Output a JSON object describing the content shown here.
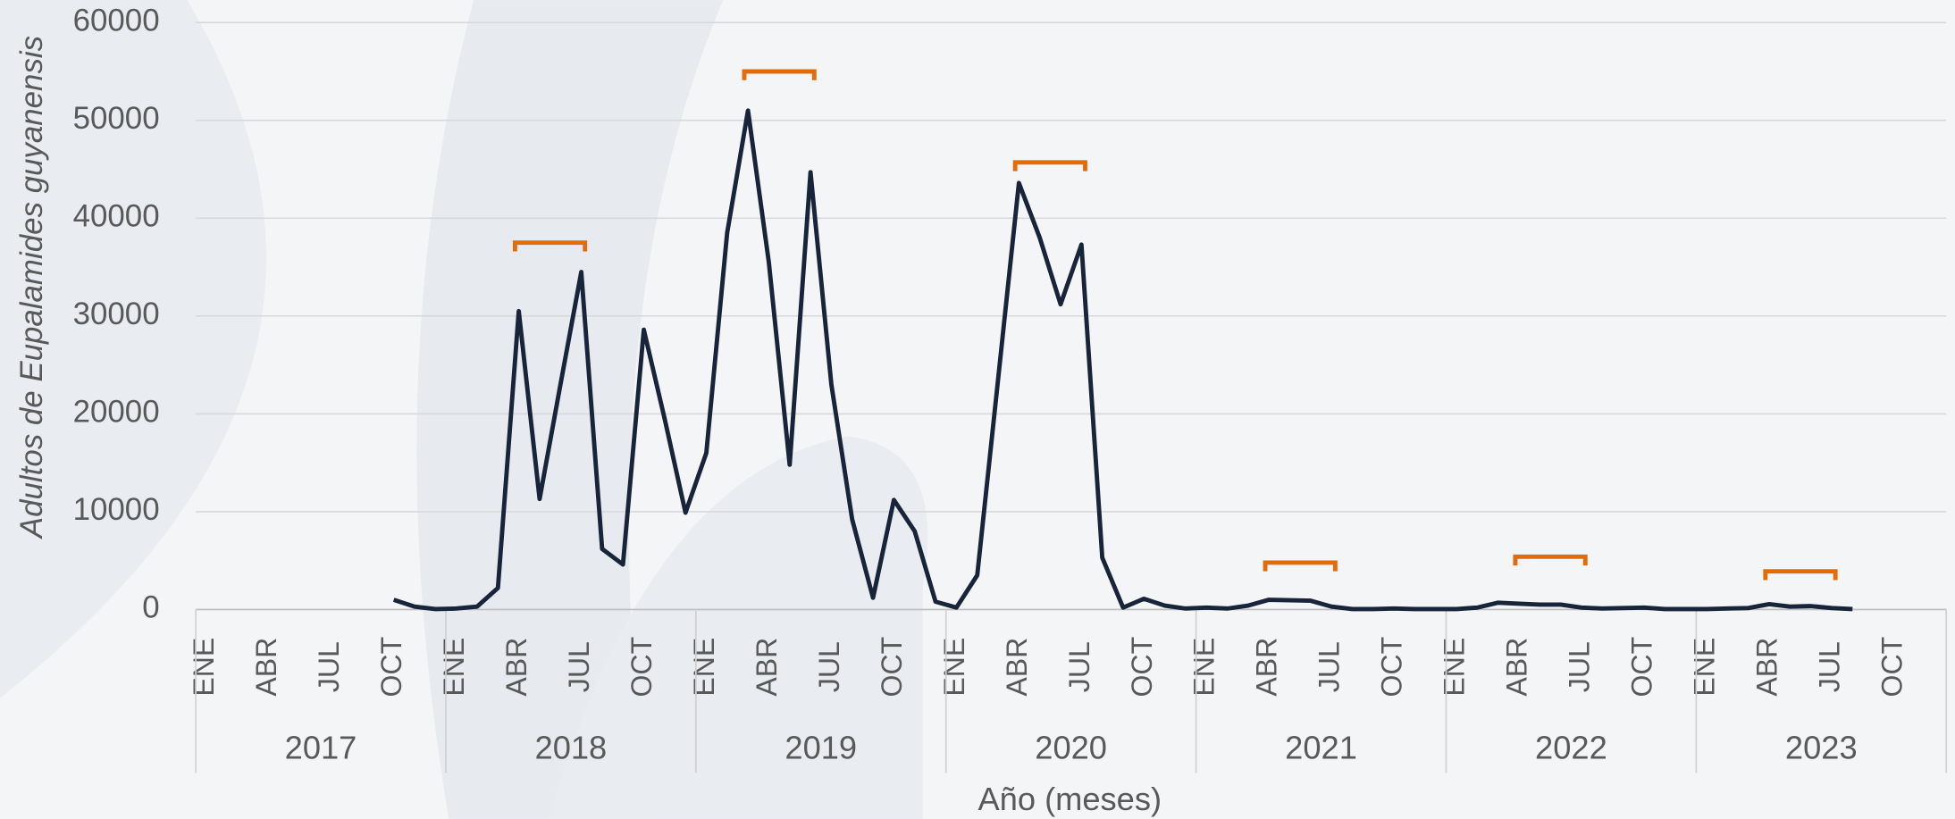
{
  "chart_data": {
    "type": "line",
    "y_axis_label": "Adultos de Eupalamides guyanensis",
    "x_axis_label": "Año (meses)",
    "categories": [
      "ENE",
      null,
      null,
      "ABR",
      null,
      null,
      "JUL",
      null,
      null,
      "OCT",
      null,
      null,
      "ENE",
      null,
      null,
      "ABR",
      null,
      null,
      "JUL",
      null,
      null,
      "OCT",
      null,
      null,
      "ENE",
      null,
      null,
      "ABR",
      null,
      null,
      "JUL",
      null,
      null,
      "OCT",
      null,
      null,
      "ENE",
      null,
      null,
      "ABR",
      null,
      null,
      "JUL",
      null,
      null,
      "OCT",
      null,
      null,
      "ENE",
      null,
      null,
      "ABR",
      null,
      null,
      "JUL",
      null,
      null,
      "OCT",
      null,
      null,
      "ENE",
      null,
      null,
      "ABR",
      null,
      null,
      "JUL",
      null,
      null,
      "OCT",
      null,
      null,
      "ENE",
      null,
      null,
      "ABR",
      null,
      null,
      "JUL",
      null,
      null,
      "OCT",
      null,
      null
    ],
    "years": [
      "2017",
      "2018",
      "2019",
      "2020",
      "2021",
      "2022",
      "2023"
    ],
    "series": [
      {
        "color": "#17243a",
        "values": [
          null,
          null,
          null,
          null,
          null,
          null,
          null,
          null,
          null,
          1000,
          300,
          50,
          100,
          300,
          2200,
          30500,
          11300,
          23000,
          34500,
          6200,
          4600,
          28600,
          19500,
          9900,
          16000,
          38500,
          51000,
          35500,
          14800,
          44700,
          23000,
          9200,
          1200,
          11200,
          8000,
          800,
          200,
          3500,
          23500,
          43600,
          38000,
          31200,
          37300,
          5300,
          200,
          1100,
          400,
          100,
          200,
          100,
          400,
          1000,
          950,
          900,
          300,
          50,
          50,
          100,
          50,
          50,
          50,
          200,
          700,
          600,
          500,
          500,
          200,
          100,
          150,
          200,
          50,
          50,
          50,
          100,
          150,
          550,
          300,
          350,
          150,
          50,
          null,
          null,
          null,
          null
        ]
      }
    ],
    "ylim": [
      0,
      60000
    ],
    "yticks": [
      0,
      10000,
      20000,
      30000,
      40000,
      50000,
      60000
    ],
    "grid": true
  }
}
